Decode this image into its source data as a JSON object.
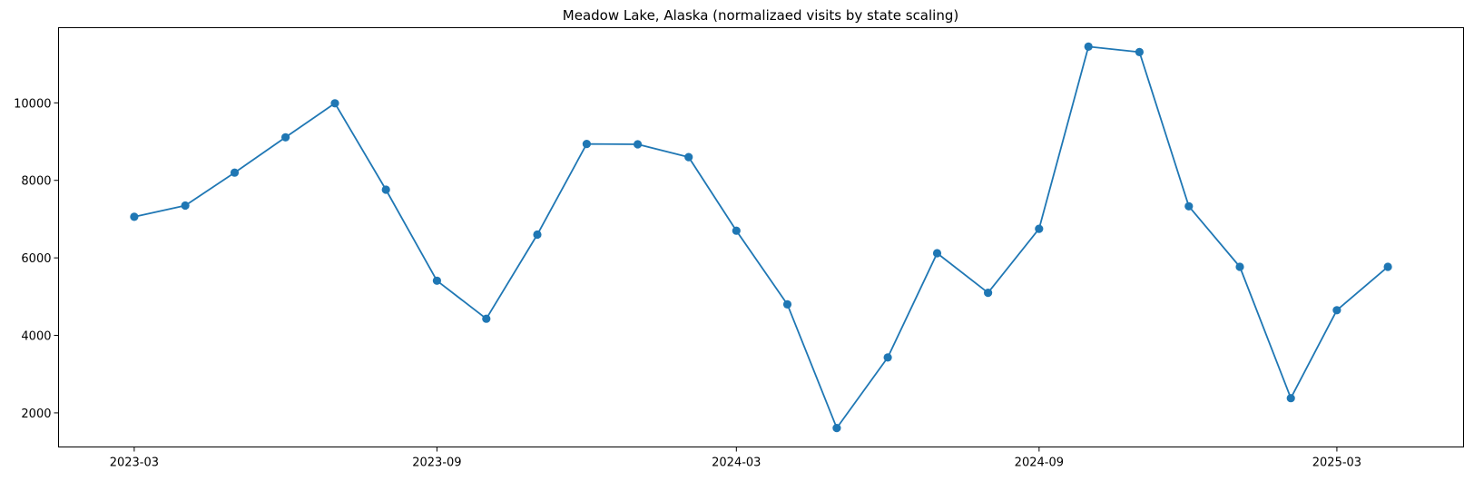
{
  "chart_data": {
    "type": "line",
    "title": "Meadow Lake, Alaska (normalizaed visits by state scaling)",
    "xlabel": "",
    "ylabel": "",
    "x": [
      "2023-03",
      "2023-04",
      "2023-05",
      "2023-06",
      "2023-07",
      "2023-08",
      "2023-09",
      "2023-10",
      "2023-11",
      "2023-12",
      "2024-01",
      "2024-02",
      "2024-03",
      "2024-04",
      "2024-05",
      "2024-06",
      "2024-07",
      "2024-08",
      "2024-09",
      "2024-10",
      "2024-11",
      "2024-12",
      "2025-01",
      "2025-02",
      "2025-03",
      "2025-04"
    ],
    "series": [
      {
        "values": [
          7060,
          7350,
          8200,
          9110,
          9990,
          7760,
          5410,
          4430,
          6600,
          8940,
          8930,
          8600,
          6700,
          4800,
          1610,
          3430,
          6120,
          5100,
          6750,
          11450,
          11310,
          7330,
          5770,
          2380,
          4650,
          5770
        ],
        "color": "#1f77b4"
      }
    ],
    "x_ticks": [
      "2023-03",
      "2023-09",
      "2024-03",
      "2024-09",
      "2025-03"
    ],
    "y_ticks": [
      2000,
      4000,
      6000,
      8000,
      10000
    ],
    "xlim": [
      "2023-01-14",
      "2025-05-17"
    ],
    "ylim": [
      1120,
      11940
    ],
    "grid": false,
    "legend": "none"
  }
}
